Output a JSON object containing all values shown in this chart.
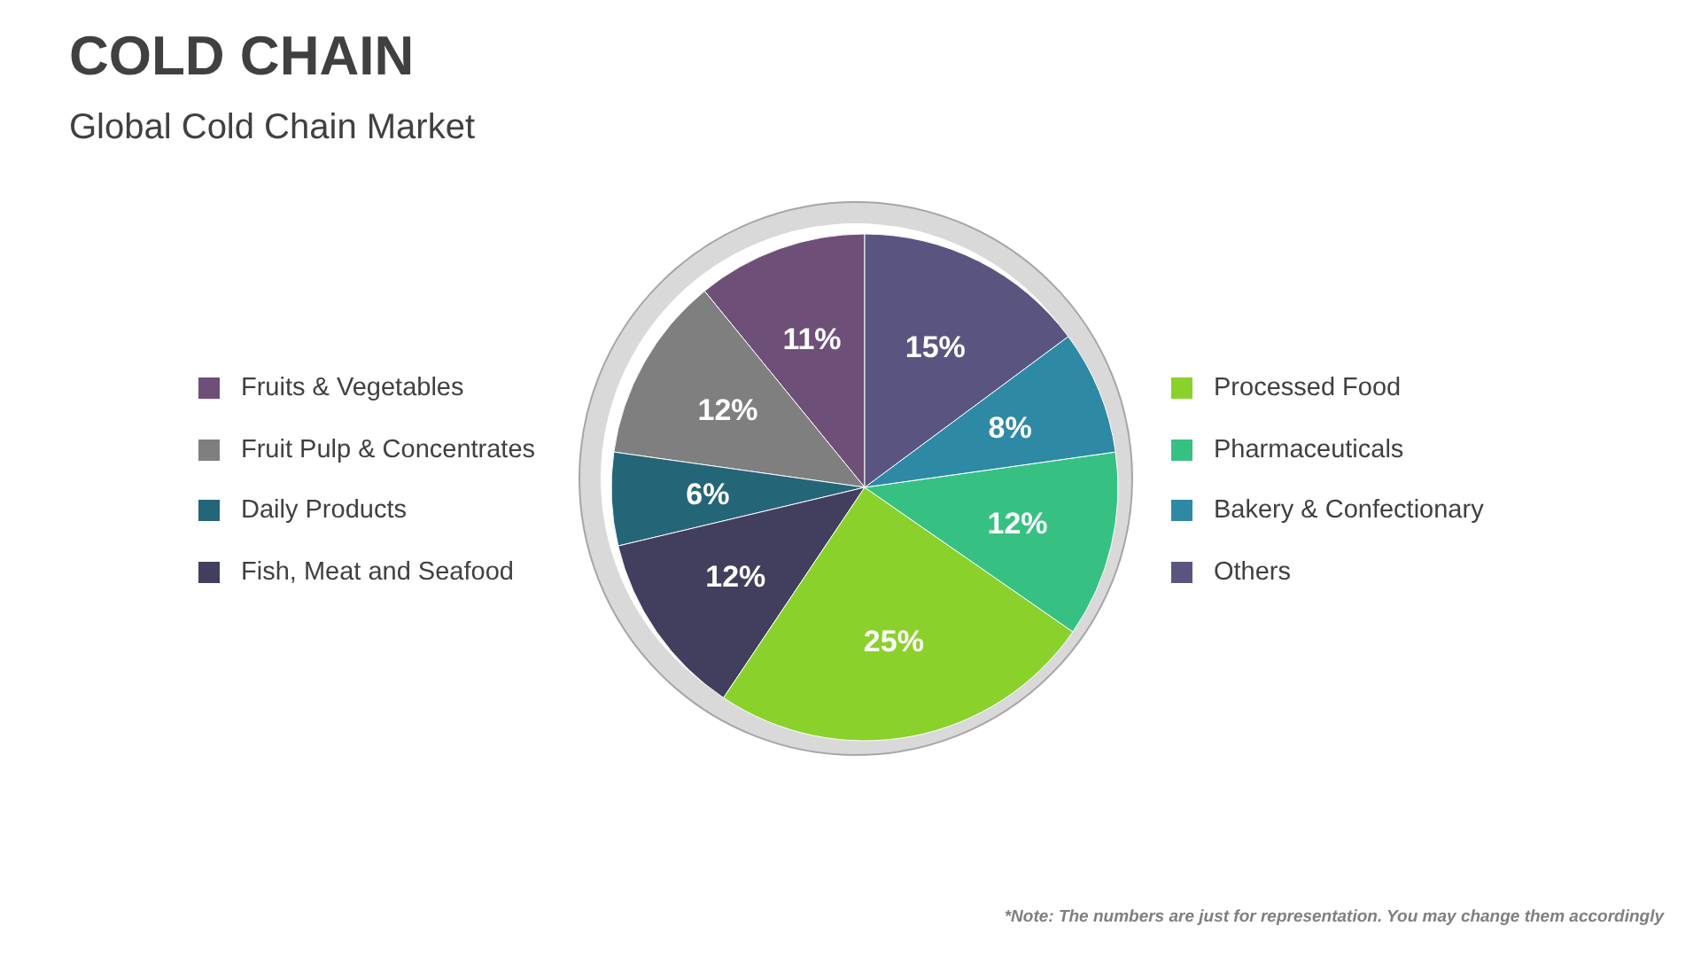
{
  "chart_data": {
    "type": "pie",
    "title": "COLD CHAIN",
    "subtitle": "Global Cold Chain Market",
    "categories": [
      "Fruits & Vegetables",
      "Fruit Pulp & Concentrates",
      "Daily Products",
      "Fish, Meat and Seafood",
      "Processed Food",
      "Pharmaceuticals",
      "Bakery & Confectionary",
      "Others"
    ],
    "values": [
      11,
      12,
      6,
      12,
      25,
      12,
      8,
      15
    ],
    "colors": [
      "#6e4f78",
      "#7f7f7f",
      "#246678",
      "#423e5e",
      "#8bd12b",
      "#36c182",
      "#2e89a5",
      "#5a5580"
    ],
    "value_labels": [
      "11%",
      "12%",
      "6%",
      "12%",
      "25%",
      "12%",
      "8%",
      "15%"
    ],
    "legend": "left right",
    "annotations": [
      "*Note: The numbers are just for representation. You may change them accordingly"
    ]
  }
}
